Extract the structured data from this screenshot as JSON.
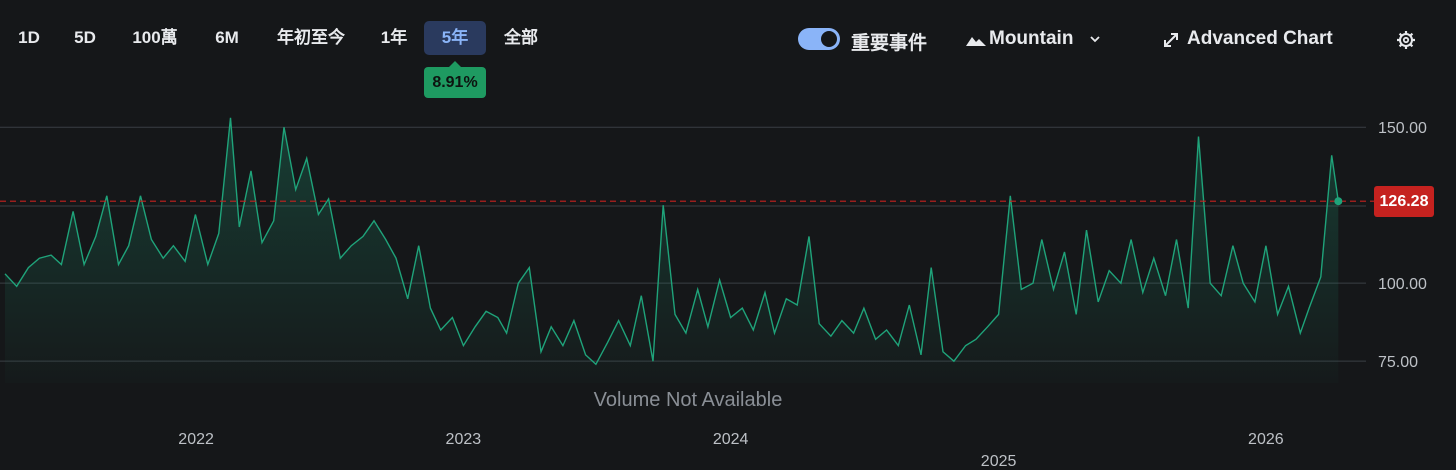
{
  "ranges": [
    {
      "label": "1D",
      "active": false
    },
    {
      "label": "5D",
      "active": false
    },
    {
      "label": "100萬",
      "active": false
    },
    {
      "label": "6M",
      "active": false
    },
    {
      "label": "年初至今",
      "active": false
    },
    {
      "label": "1年",
      "active": false
    },
    {
      "label": "5年",
      "active": true
    },
    {
      "label": "全部",
      "active": false
    }
  ],
  "change_badge": "8.91%",
  "events_toggle": {
    "label": "重要事件",
    "on": true
  },
  "chart_type_select": {
    "label": "Mountain",
    "icon": "mountain-icon"
  },
  "advanced_chart": {
    "label": "Advanced Chart",
    "icon": "expand-arrows-icon"
  },
  "settings": {
    "icon": "gear-icon"
  },
  "last_price_label": "126.28",
  "volume_note": "Volume Not Available",
  "colors": {
    "background": "#151719",
    "line": "#1fa37a",
    "price_badge": "#c5221f",
    "change_badge": "#1e9a61",
    "active_range": "#2a3a5e"
  },
  "chart_data": {
    "type": "area",
    "title": "",
    "xlabel": "",
    "ylabel": "",
    "xlim": [
      "2021-04-15",
      "2026-04-15"
    ],
    "ylim": [
      68,
      160
    ],
    "yticks": [
      75,
      100,
      150
    ],
    "ytick_labels": [
      "75.00",
      "100.00",
      "150.00"
    ],
    "xticks": [
      {
        "x": "2022-01-01",
        "label": "2022"
      },
      {
        "x": "2023-01-01",
        "label": "2023"
      },
      {
        "x": "2024-01-01",
        "label": "2024"
      },
      {
        "x": "2025-01-01",
        "label": "2025"
      },
      {
        "x": "2026-01-01",
        "label": "2026"
      }
    ],
    "reference_line": {
      "y": 126.28,
      "style": "dashed",
      "label": "126.28"
    },
    "grid": true,
    "series": [
      {
        "points": [
          [
            "2021-04-15",
            103
          ],
          [
            "2021-05-01",
            99
          ],
          [
            "2021-05-17",
            105
          ],
          [
            "2021-06-01",
            108
          ],
          [
            "2021-06-17",
            109
          ],
          [
            "2021-07-01",
            106
          ],
          [
            "2021-07-17",
            123
          ],
          [
            "2021-08-01",
            106
          ],
          [
            "2021-08-17",
            115
          ],
          [
            "2021-09-01",
            128
          ],
          [
            "2021-09-17",
            106
          ],
          [
            "2021-10-01",
            112
          ],
          [
            "2021-10-17",
            128
          ],
          [
            "2021-11-01",
            114
          ],
          [
            "2021-11-17",
            108
          ],
          [
            "2021-12-01",
            112
          ],
          [
            "2021-12-17",
            107
          ],
          [
            "2021-12-31",
            122
          ],
          [
            "2022-01-17",
            106
          ],
          [
            "2022-02-01",
            116
          ],
          [
            "2022-02-17",
            153
          ],
          [
            "2022-03-01",
            118
          ],
          [
            "2022-03-17",
            136
          ],
          [
            "2022-04-01",
            113
          ],
          [
            "2022-04-17",
            120
          ],
          [
            "2022-05-01",
            150
          ],
          [
            "2022-05-17",
            130
          ],
          [
            "2022-06-01",
            140
          ],
          [
            "2022-06-17",
            122
          ],
          [
            "2022-07-01",
            127
          ],
          [
            "2022-07-17",
            108
          ],
          [
            "2022-08-01",
            112
          ],
          [
            "2022-08-17",
            115
          ],
          [
            "2022-09-01",
            120
          ],
          [
            "2022-09-17",
            114
          ],
          [
            "2022-10-01",
            108
          ],
          [
            "2022-10-17",
            95
          ],
          [
            "2022-11-01",
            112
          ],
          [
            "2022-11-17",
            92
          ],
          [
            "2022-12-01",
            85
          ],
          [
            "2022-12-17",
            89
          ],
          [
            "2023-01-01",
            80
          ],
          [
            "2023-01-17",
            86
          ],
          [
            "2023-02-01",
            91
          ],
          [
            "2023-02-17",
            89
          ],
          [
            "2023-03-01",
            84
          ],
          [
            "2023-03-17",
            100
          ],
          [
            "2023-04-01",
            105
          ],
          [
            "2023-04-17",
            78
          ],
          [
            "2023-05-01",
            86
          ],
          [
            "2023-05-17",
            80
          ],
          [
            "2023-06-01",
            88
          ],
          [
            "2023-06-17",
            77
          ],
          [
            "2023-07-01",
            74
          ],
          [
            "2023-07-17",
            81
          ],
          [
            "2023-08-01",
            88
          ],
          [
            "2023-08-17",
            80
          ],
          [
            "2023-09-01",
            96
          ],
          [
            "2023-09-17",
            75
          ],
          [
            "2023-10-01",
            125
          ],
          [
            "2023-10-17",
            90
          ],
          [
            "2023-11-01",
            84
          ],
          [
            "2023-11-17",
            98
          ],
          [
            "2023-12-01",
            86
          ],
          [
            "2023-12-17",
            101
          ],
          [
            "2024-01-01",
            89
          ],
          [
            "2024-01-17",
            92
          ],
          [
            "2024-02-01",
            85
          ],
          [
            "2024-02-17",
            97
          ],
          [
            "2024-03-01",
            84
          ],
          [
            "2024-03-17",
            95
          ],
          [
            "2024-04-01",
            93
          ],
          [
            "2024-04-17",
            115
          ],
          [
            "2024-05-01",
            87
          ],
          [
            "2024-05-17",
            83
          ],
          [
            "2024-06-01",
            88
          ],
          [
            "2024-06-17",
            84
          ],
          [
            "2024-07-01",
            92
          ],
          [
            "2024-07-17",
            82
          ],
          [
            "2024-08-01",
            85
          ],
          [
            "2024-08-17",
            80
          ],
          [
            "2024-09-01",
            93
          ],
          [
            "2024-09-17",
            77
          ],
          [
            "2024-10-01",
            105
          ],
          [
            "2024-10-17",
            78
          ],
          [
            "2024-11-01",
            75
          ],
          [
            "2024-11-17",
            80
          ],
          [
            "2024-12-01",
            82
          ],
          [
            "2024-12-17",
            86
          ],
          [
            "2025-01-01",
            90
          ],
          [
            "2025-01-17",
            128
          ],
          [
            "2025-02-01",
            98
          ],
          [
            "2025-02-17",
            100
          ],
          [
            "2025-03-01",
            114
          ],
          [
            "2025-03-17",
            98
          ],
          [
            "2025-04-01",
            110
          ],
          [
            "2025-04-17",
            90
          ],
          [
            "2025-05-01",
            117
          ],
          [
            "2025-05-17",
            94
          ],
          [
            "2025-06-01",
            104
          ],
          [
            "2025-06-17",
            100
          ],
          [
            "2025-07-01",
            114
          ],
          [
            "2025-07-17",
            97
          ],
          [
            "2025-08-01",
            108
          ],
          [
            "2025-08-17",
            96
          ],
          [
            "2025-09-01",
            114
          ],
          [
            "2025-09-17",
            92
          ],
          [
            "2025-10-01",
            147
          ],
          [
            "2025-10-17",
            100
          ],
          [
            "2025-11-01",
            96
          ],
          [
            "2025-11-17",
            112
          ],
          [
            "2025-12-01",
            100
          ],
          [
            "2025-12-17",
            94
          ],
          [
            "2026-01-01",
            112
          ],
          [
            "2026-01-17",
            90
          ],
          [
            "2026-02-01",
            99
          ],
          [
            "2026-02-17",
            84
          ],
          [
            "2026-03-01",
            92
          ],
          [
            "2026-03-17",
            102
          ],
          [
            "2026-04-01",
            141
          ],
          [
            "2026-04-10",
            126.28
          ]
        ]
      }
    ]
  }
}
